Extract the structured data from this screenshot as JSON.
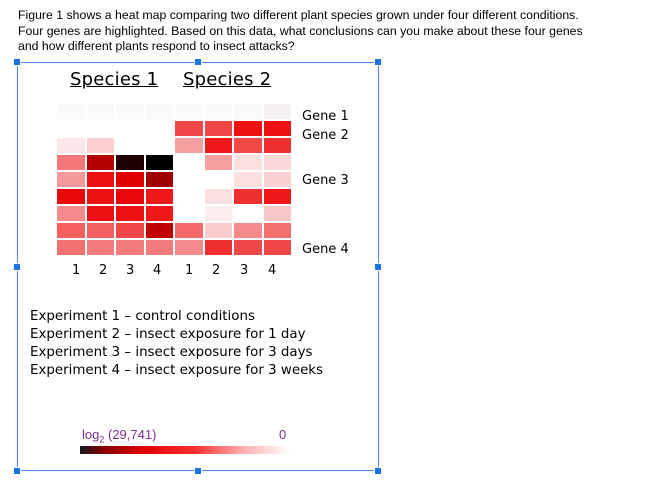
{
  "question": {
    "line1": "Figure 1 shows a heat map comparing two different plant species grown under four different conditions.",
    "line2": "Four genes are highlighted.  Based on this data, what conclusions can you make about these four genes",
    "line3": "and how different plants respond to insect attacks?"
  },
  "figure": {
    "species1": "Species 1",
    "species2": "Species 2",
    "genes": {
      "gene1": "Gene 1",
      "gene2": "Gene 2",
      "gene3": "Gene 3",
      "gene4": "Gene 4"
    },
    "experiment_numbers": [
      "1",
      "2",
      "3",
      "4",
      "1",
      "2",
      "3",
      "4"
    ],
    "experiments": [
      "Experiment 1 – control conditions",
      "Experiment 2 – insect exposure for 1 day",
      "Experiment 3 – insect exposure for 3 days",
      "Experiment 4 – insect exposure for 3 weeks"
    ],
    "scale": {
      "left_label_base": "log",
      "left_label_sub": "2",
      "left_label_value": " (29,741)",
      "right_label": "0"
    },
    "heatmap_colors": [
      [
        "#fafafa",
        "#fafafa",
        "#fafafa",
        "#fafafa",
        "#fafafa",
        "#fafafa",
        "#fafafa",
        "#f6f0f0"
      ],
      [
        "#ffffff",
        "#ffffff",
        "#ffffff",
        "#ffffff",
        "#f04848",
        "#f04848",
        "#ee1010",
        "#ee1010"
      ],
      [
        "#fbe7e7",
        "#fcd0d0",
        "#ffffff",
        "#ffffff",
        "#f4a0a0",
        "#ee1818",
        "#f24848",
        "#f03030"
      ],
      [
        "#f47878",
        "#b40000",
        "#200000",
        "#000000",
        "#ffffff",
        "#f5a0a0",
        "#fbe0e0",
        "#fbd8d8"
      ],
      [
        "#f59a9a",
        "#ee1010",
        "#e00000",
        "#a00000",
        "#ffffff",
        "#ffffff",
        "#fbe0e0",
        "#fbd0d0"
      ],
      [
        "#e80808",
        "#ee1010",
        "#e80808",
        "#ee1818",
        "#ffffff",
        "#fbe0e0",
        "#f03030",
        "#ee1818"
      ],
      [
        "#f58a8a",
        "#ee1010",
        "#ee1010",
        "#ee1818",
        "#ffffff",
        "#fdeeee",
        "#ffffff",
        "#f8c8c8"
      ],
      [
        "#f46060",
        "#f06060",
        "#f04848",
        "#c00000",
        "#f46a6a",
        "#fbcccc",
        "#f58a8a",
        "#f27070"
      ],
      [
        "#f57070",
        "#f27a7a",
        "#f27a7a",
        "#f27a7a",
        "#f58a8a",
        "#f03030",
        "#f04848",
        "#f04848"
      ]
    ]
  }
}
